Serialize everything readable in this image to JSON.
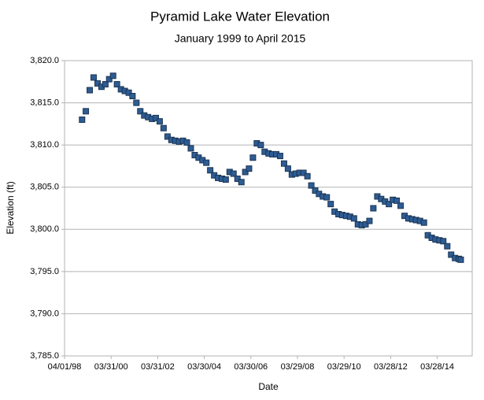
{
  "chart_data": {
    "type": "scatter",
    "title": "Pyramid Lake Water Elevation",
    "subtitle": "January 1999 to April 2015",
    "x_label": "Date",
    "y_label": "Elevation (ft)",
    "color": "#2e5c94",
    "grid": true,
    "xlim": [
      "1998-04-01",
      "2015-09-27"
    ],
    "xticks": [
      {
        "value": "1998-04-01",
        "label": "04/01/98"
      },
      {
        "value": "2000-03-31",
        "label": "03/31/00"
      },
      {
        "value": "2002-03-31",
        "label": "03/31/02"
      },
      {
        "value": "2004-03-30",
        "label": "03/30/04"
      },
      {
        "value": "2006-03-30",
        "label": "03/30/06"
      },
      {
        "value": "2008-03-29",
        "label": "03/29/08"
      },
      {
        "value": "2010-03-29",
        "label": "03/29/10"
      },
      {
        "value": "2012-03-28",
        "label": "03/28/12"
      },
      {
        "value": "2014-03-28",
        "label": "03/28/14"
      }
    ],
    "ylim": [
      3785,
      3820
    ],
    "yticks": [
      {
        "value": 3785,
        "label": "3,785.0"
      },
      {
        "value": 3790,
        "label": "3,790.0"
      },
      {
        "value": 3795,
        "label": "3,795.0"
      },
      {
        "value": 3800,
        "label": "3,800.0"
      },
      {
        "value": 3805,
        "label": "3,805.0"
      },
      {
        "value": 3810,
        "label": "3,810.0"
      },
      {
        "value": 3815,
        "label": "3,815.0"
      },
      {
        "value": 3820,
        "label": "3,820.0"
      }
    ],
    "x": [
      "1999-01-01",
      "1999-03-01",
      "1999-05-01",
      "1999-07-01",
      "1999-09-01",
      "1999-11-01",
      "2000-01-01",
      "2000-03-01",
      "2000-05-01",
      "2000-07-01",
      "2000-09-01",
      "2000-11-01",
      "2001-01-01",
      "2001-03-01",
      "2001-05-01",
      "2001-07-01",
      "2001-09-01",
      "2001-11-01",
      "2002-01-01",
      "2002-03-01",
      "2002-05-01",
      "2002-07-01",
      "2002-09-01",
      "2002-11-01",
      "2003-01-01",
      "2003-03-01",
      "2003-05-01",
      "2003-07-01",
      "2003-09-01",
      "2003-11-01",
      "2004-01-01",
      "2004-03-01",
      "2004-05-01",
      "2004-07-01",
      "2004-09-01",
      "2004-11-01",
      "2005-01-01",
      "2005-03-01",
      "2005-05-01",
      "2005-07-01",
      "2005-09-01",
      "2005-11-01",
      "2006-01-01",
      "2006-03-01",
      "2006-05-01",
      "2006-07-01",
      "2006-09-01",
      "2006-11-01",
      "2007-01-01",
      "2007-03-01",
      "2007-05-01",
      "2007-07-01",
      "2007-09-01",
      "2007-11-01",
      "2008-01-01",
      "2008-03-01",
      "2008-05-01",
      "2008-07-01",
      "2008-09-01",
      "2008-11-01",
      "2009-01-01",
      "2009-03-01",
      "2009-05-01",
      "2009-07-01",
      "2009-09-01",
      "2009-11-01",
      "2010-01-01",
      "2010-03-01",
      "2010-05-01",
      "2010-07-01",
      "2010-09-01",
      "2010-11-01",
      "2011-01-01",
      "2011-03-01",
      "2011-05-01",
      "2011-07-01",
      "2011-09-01",
      "2011-11-01",
      "2012-01-01",
      "2012-03-01",
      "2012-05-01",
      "2012-07-01",
      "2012-09-01",
      "2012-11-01",
      "2013-01-01",
      "2013-03-01",
      "2013-05-01",
      "2013-07-01",
      "2013-09-01",
      "2013-11-01",
      "2014-01-01",
      "2014-03-01",
      "2014-05-01",
      "2014-07-01",
      "2014-09-01",
      "2014-11-01",
      "2015-01-01",
      "2015-03-01",
      "2015-04-01"
    ],
    "values": [
      3813.0,
      3814.0,
      3816.5,
      3818.0,
      3817.3,
      3816.9,
      3817.2,
      3817.8,
      3818.2,
      3817.2,
      3816.6,
      3816.4,
      3816.2,
      3815.8,
      3815.0,
      3814.0,
      3813.5,
      3813.3,
      3813.1,
      3813.2,
      3812.8,
      3812.0,
      3811.0,
      3810.6,
      3810.5,
      3810.4,
      3810.5,
      3810.3,
      3809.6,
      3808.8,
      3808.5,
      3808.2,
      3807.9,
      3807.0,
      3806.4,
      3806.1,
      3806.0,
      3805.9,
      3806.8,
      3806.6,
      3806.0,
      3805.6,
      3806.8,
      3807.2,
      3808.5,
      3810.2,
      3810.0,
      3809.2,
      3809.0,
      3808.9,
      3808.9,
      3808.7,
      3807.8,
      3807.2,
      3806.5,
      3806.6,
      3806.7,
      3806.7,
      3806.3,
      3805.2,
      3804.6,
      3804.2,
      3803.9,
      3803.8,
      3803.0,
      3802.1,
      3801.8,
      3801.7,
      3801.6,
      3801.5,
      3801.3,
      3800.6,
      3800.5,
      3800.6,
      3801.0,
      3802.5,
      3803.9,
      3803.6,
      3803.3,
      3803.0,
      3803.5,
      3803.4,
      3802.8,
      3801.6,
      3801.3,
      3801.2,
      3801.1,
      3801.0,
      3800.8,
      3799.3,
      3799.0,
      3798.8,
      3798.7,
      3798.6,
      3798.0,
      3797.0,
      3796.6,
      3796.5,
      3796.4
    ]
  }
}
